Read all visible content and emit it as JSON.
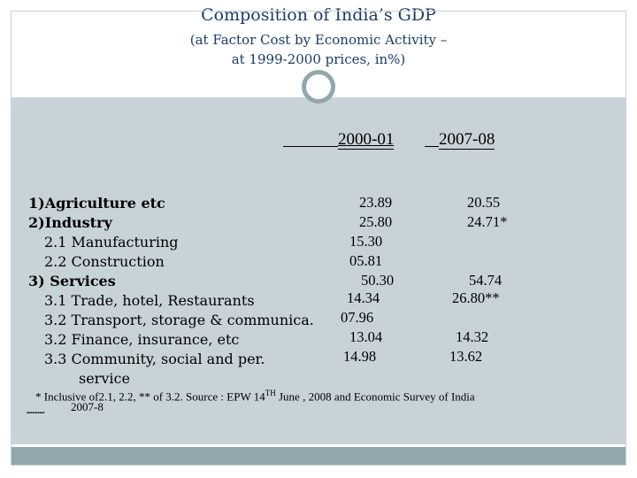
{
  "header": {
    "title": "Composition of India’s GDP",
    "subtitle_line1": "(at Factor Cost by Economic Activity –",
    "subtitle_line2": "at 1999-2000 prices, in%)"
  },
  "columns": [
    "2000-01",
    "2007-08"
  ],
  "rows": [
    {
      "label": "1)Agriculture etc",
      "bold": true,
      "v1": "23.89",
      "v2": "20.55"
    },
    {
      "label": "2)Industry",
      "bold": true,
      "v1": "25.80",
      "v2": "24.71*"
    },
    {
      "label": "2.1  Manufacturing",
      "bold": false,
      "v1": "15.30",
      "v2": ""
    },
    {
      "label": "2.2  Construction",
      "bold": false,
      "v1": "05.81",
      "v2": ""
    },
    {
      "label": "3) Services",
      "bold": true,
      "v1": "50.30",
      "v2": "54.74"
    },
    {
      "label": "3.1 Trade, hotel, Restaurants",
      "bold": false,
      "v1": "14.34",
      "v2": "26.80**"
    },
    {
      "label": "3.2 Transport, storage & communica.",
      "bold": false,
      "v1": "07.96",
      "v2": ""
    },
    {
      "label": "3.2  Finance, insurance, etc",
      "bold": false,
      "v1": "13.04",
      "v2": "14.32"
    },
    {
      "label": "3.3  Community, social and per.",
      "bold": false,
      "v1": "14.98",
      "v2": "13.62"
    },
    {
      "label": "service",
      "bold": false,
      "v1": "",
      "v2": ""
    }
  ],
  "footnote": {
    "part1": "* Inclusive of2.1, 2.2, ** of 3.2. Source : EPW 14",
    "sup": "TH",
    "part2": " June , 2008 and Economic Survey of India",
    "line2": "2007-8"
  }
}
